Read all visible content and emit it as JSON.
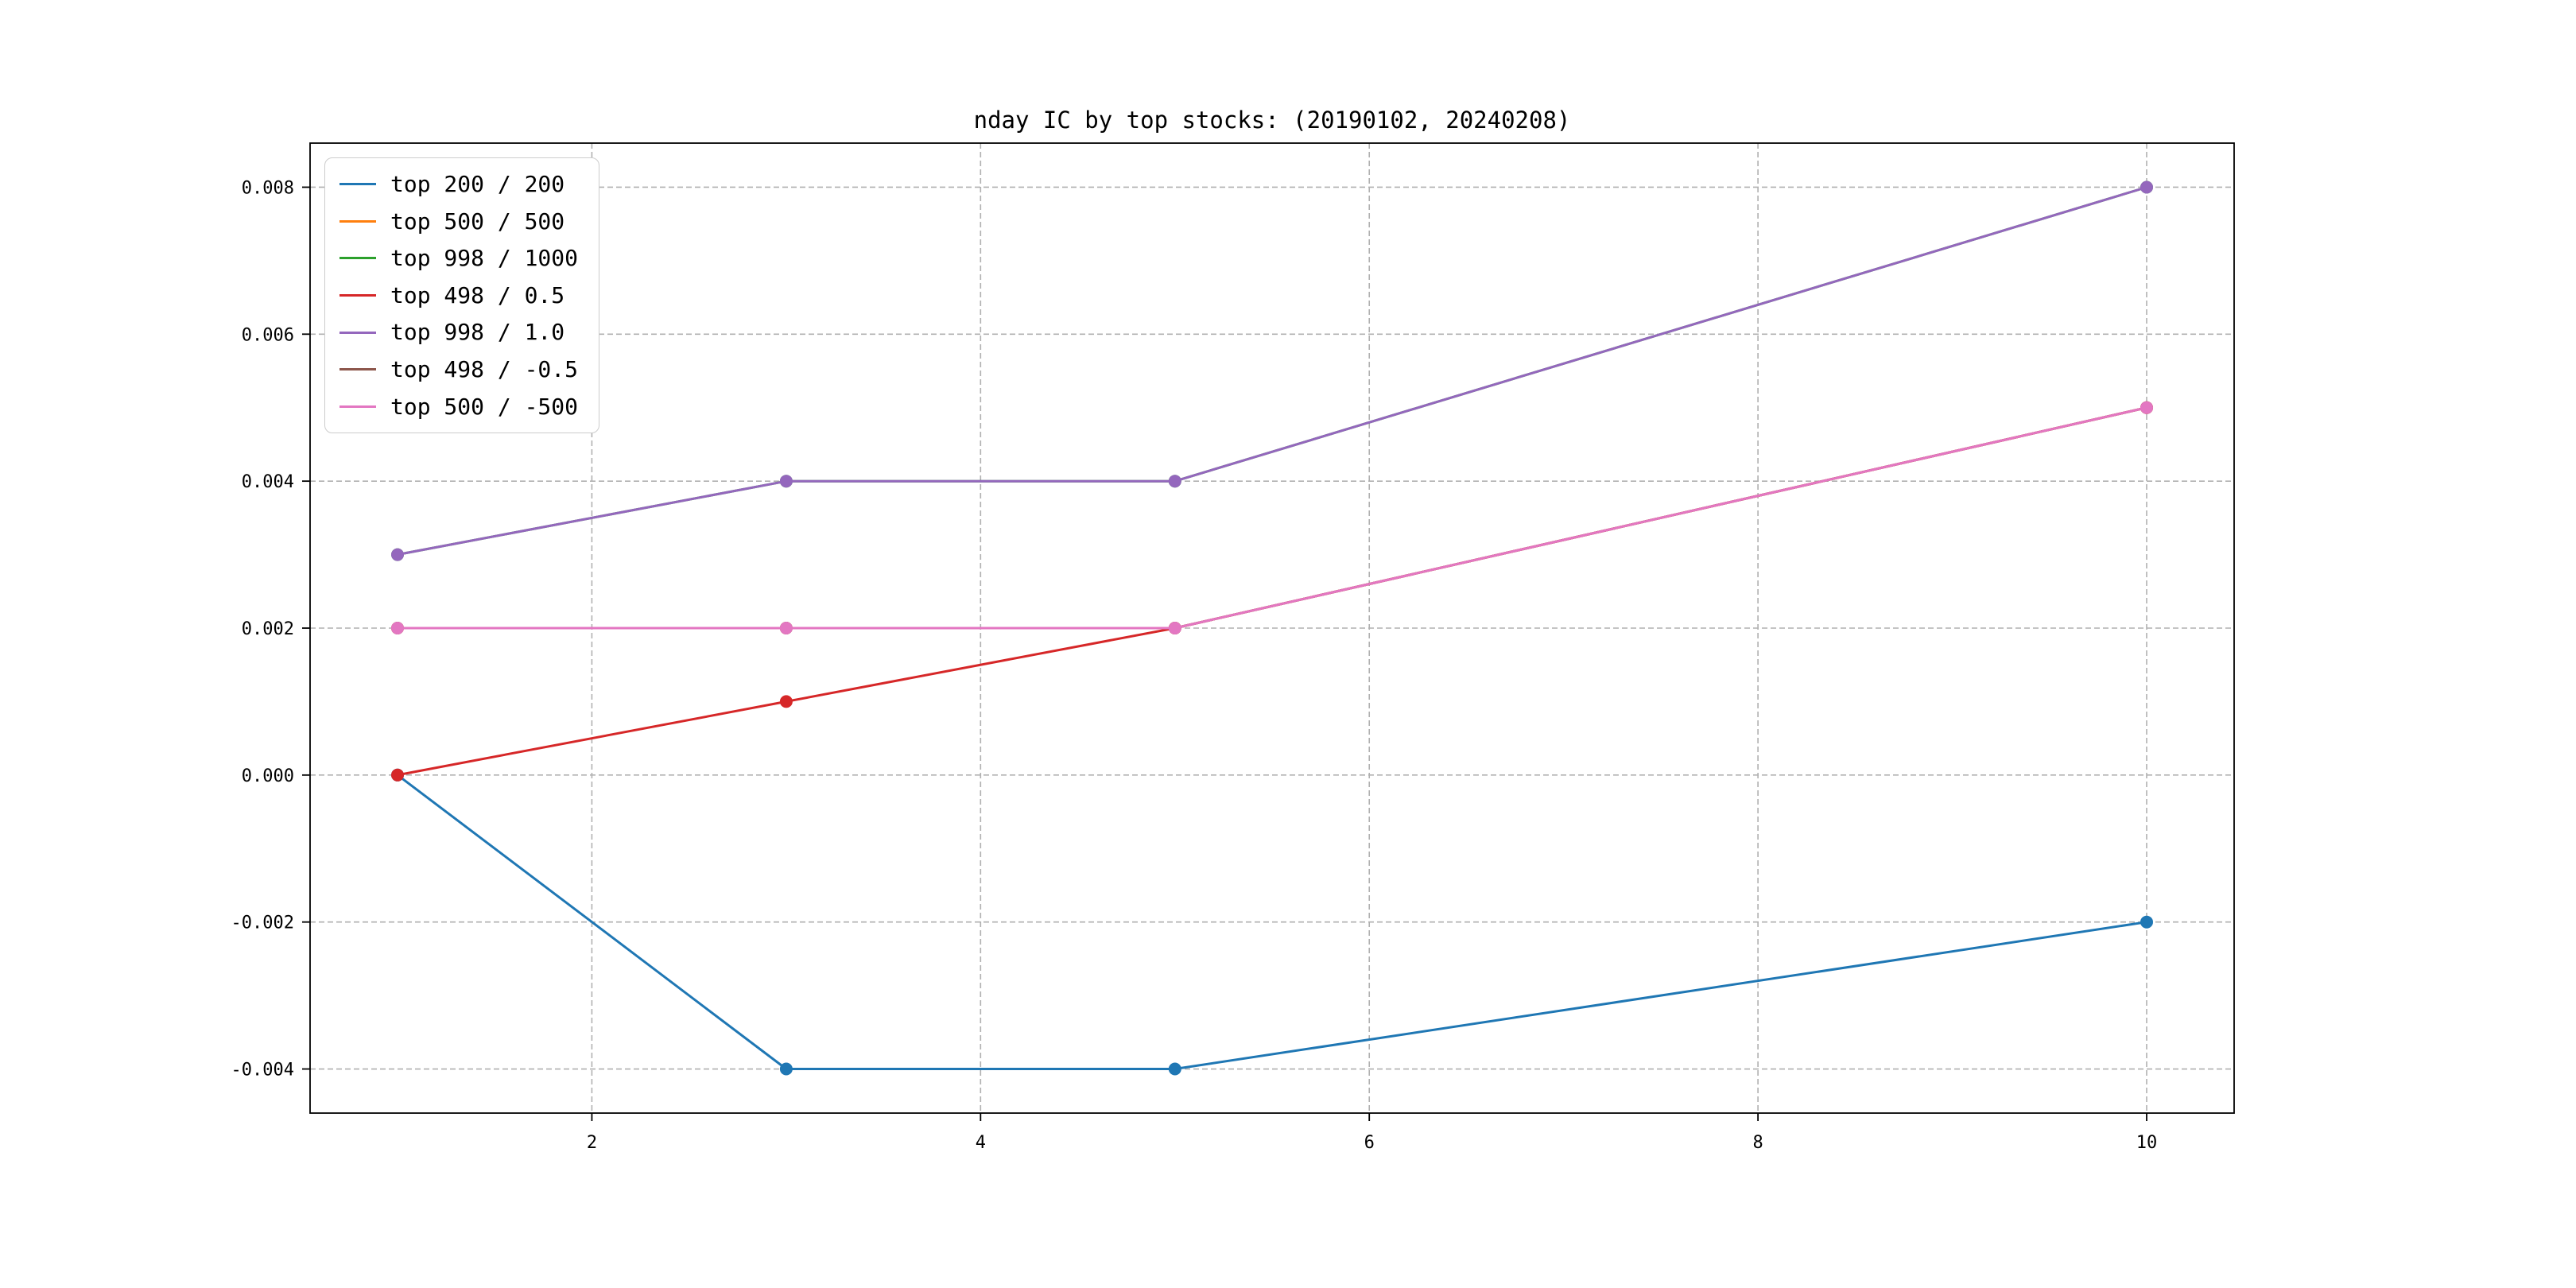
{
  "figure": {
    "background": "#ffffff",
    "frame_color": "#000000",
    "grid_color": "#b0b0b0"
  },
  "chart_data": {
    "type": "line",
    "title": "nday IC by top stocks: (20190102, 20240208)",
    "xlabel": "",
    "ylabel": "",
    "x": [
      1,
      3,
      5,
      10
    ],
    "series": [
      {
        "name": "top 200 / 200",
        "color": "#1f77b4",
        "values": [
          0.0,
          -0.004,
          -0.004,
          -0.002
        ]
      },
      {
        "name": "top 500 / 500",
        "color": "#ff7f0e",
        "values": [
          0.002,
          0.002,
          0.002,
          0.005
        ]
      },
      {
        "name": "top 998 / 1000",
        "color": "#2ca02c",
        "values": [
          0.003,
          0.004,
          0.004,
          0.008
        ]
      },
      {
        "name": "top 498 / 0.5",
        "color": "#d62728",
        "values": [
          0.0,
          0.001,
          0.002,
          0.005
        ]
      },
      {
        "name": "top 998 / 1.0",
        "color": "#9467bd",
        "values": [
          0.003,
          0.004,
          0.004,
          0.008
        ]
      },
      {
        "name": "top 498 / -0.5",
        "color": "#8c564b",
        "values": [
          0.002,
          0.002,
          0.002,
          0.005
        ]
      },
      {
        "name": "top 500 / -500",
        "color": "#e377c2",
        "values": [
          0.002,
          0.002,
          0.002,
          0.005
        ]
      }
    ],
    "xticks": [
      2,
      4,
      6,
      8,
      10
    ],
    "xtick_labels": [
      "2",
      "4",
      "6",
      "8",
      "10"
    ],
    "yticks": [
      -0.004,
      -0.002,
      0,
      0.002,
      0.004,
      0.006,
      0.008
    ],
    "ytick_labels": [
      "-0.004",
      "-0.002",
      "0.000",
      "0.002",
      "0.004",
      "0.006",
      "0.008"
    ],
    "xlim": [
      0.55,
      10.45
    ],
    "ylim": [
      -0.0046,
      0.0086
    ],
    "grid": true,
    "grid_style": "dashed",
    "legend_position": "upper left",
    "marker": "o"
  }
}
